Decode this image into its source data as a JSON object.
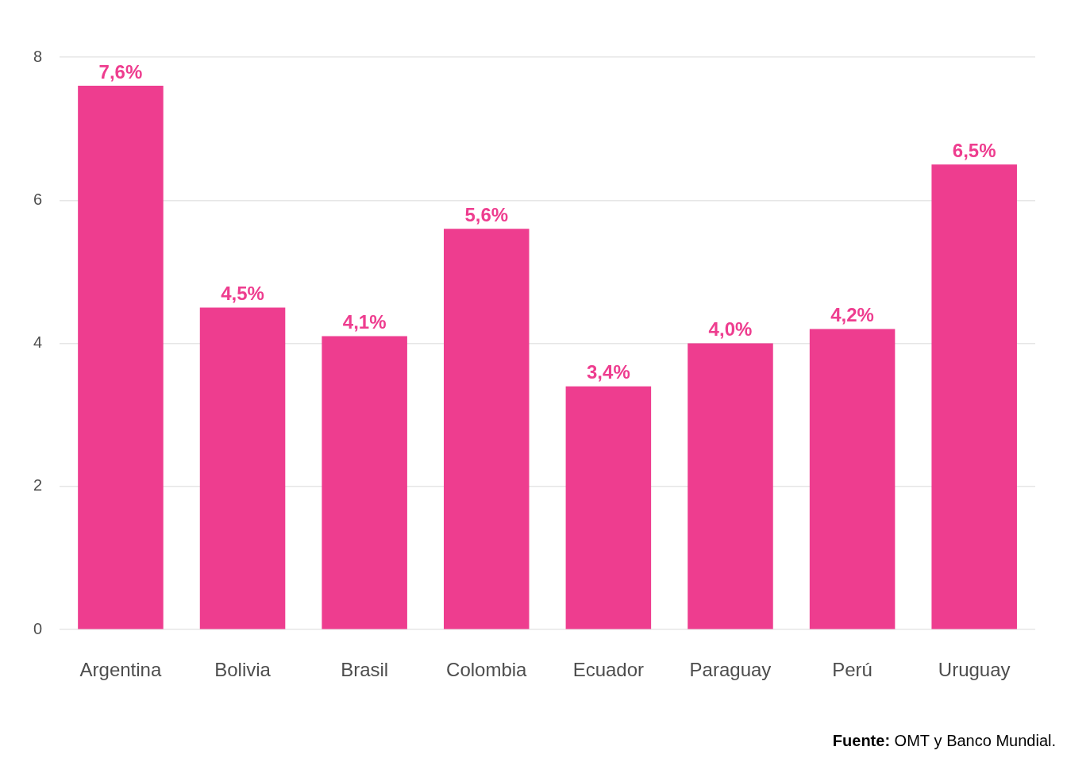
{
  "chart_data": {
    "type": "bar",
    "categories": [
      "Argentina",
      "Bolivia",
      "Brasil",
      "Colombia",
      "Ecuador",
      "Paraguay",
      "Perú",
      "Uruguay"
    ],
    "values": [
      7.6,
      4.5,
      4.1,
      5.6,
      3.4,
      4.0,
      4.2,
      6.5
    ],
    "value_labels": [
      "7,6%",
      "4,5%",
      "4,1%",
      "5,6%",
      "3,4%",
      "4,0%",
      "4,2%",
      "6,5%"
    ],
    "data_labels": true,
    "color": "#ee3d8f",
    "ylim": [
      0,
      8
    ],
    "yticks": [
      0,
      2,
      4,
      6,
      8
    ],
    "grid": true,
    "source": "Fuente: OMT y Banco Mundial."
  }
}
